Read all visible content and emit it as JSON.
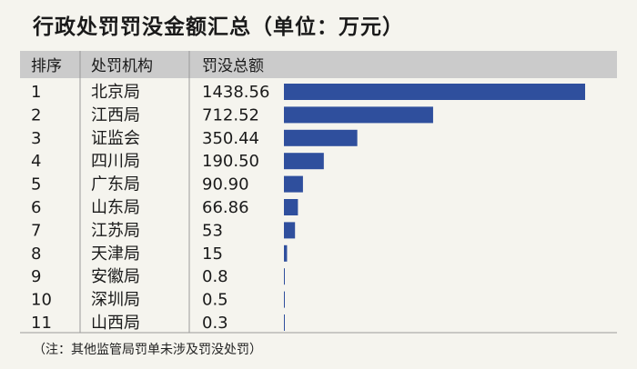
{
  "title": "行政处罚罚没金额汇总（单位：万元）",
  "note": "（注：其他监管局罚单未涉及罚没处罚）",
  "colors": {
    "bar": "#2f4f9d",
    "header_bg": "#cbcbcb",
    "background": "#f5f4ee"
  },
  "chart_data": {
    "type": "bar",
    "orientation": "horizontal",
    "columns": [
      "排序",
      "处罚机构",
      "罚没总额"
    ],
    "ranks": [
      "1",
      "2",
      "3",
      "4",
      "5",
      "6",
      "7",
      "8",
      "9",
      "10",
      "11"
    ],
    "categories": [
      "北京局",
      "江西局",
      "证监会",
      "四川局",
      "广东局",
      "山东局",
      "江苏局",
      "天津局",
      "安徽局",
      "深圳局",
      "山西局"
    ],
    "value_labels": [
      "1438.56",
      "712.52",
      "350.44",
      "190.50",
      "90.90",
      "66.86",
      "53",
      "15",
      "0.8",
      "0.5",
      "0.3"
    ],
    "values": [
      1438.56,
      712.52,
      350.44,
      190.5,
      90.9,
      66.86,
      53,
      15,
      0.8,
      0.5,
      0.3
    ],
    "xlim": [
      0,
      1438.56
    ]
  }
}
